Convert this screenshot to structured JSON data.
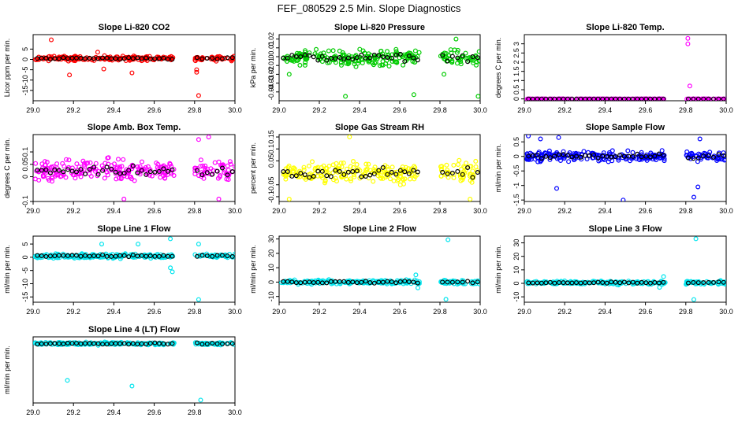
{
  "figure": {
    "title": "FEF_080529  2.5 Min. Slope Diagnostics"
  },
  "chart_data": [
    {
      "type": "scatter",
      "title": "Slope Li-820 CO2",
      "ylabel": "Licor ppm per min.",
      "xlim": [
        29.0,
        30.0
      ],
      "ylim": [
        -20,
        12
      ],
      "xticks": [
        29.0,
        29.2,
        29.4,
        29.6,
        29.8,
        30.0
      ],
      "yticks": [
        -15,
        -10,
        -5,
        0,
        5
      ],
      "color": "#ff0000",
      "center": 0.5,
      "spread": 1.6,
      "outliers": [
        [
          29.09,
          9.5
        ],
        [
          29.18,
          -7.5
        ],
        [
          29.32,
          3.5
        ],
        [
          29.35,
          -4.6
        ],
        [
          29.49,
          -6.5
        ],
        [
          29.81,
          -5.0
        ],
        [
          29.81,
          -6.2
        ],
        [
          29.82,
          -17.5
        ]
      ]
    },
    {
      "type": "scatter",
      "title": "Slope Li-820 Pressure",
      "ylabel": "kPa per min.",
      "xlim": [
        29.0,
        30.0
      ],
      "ylim": [
        -0.05,
        0.025
      ],
      "xticks": [
        29.0,
        29.2,
        29.4,
        29.6,
        29.8,
        30.0
      ],
      "yticks": [
        -0.04,
        -0.03,
        -0.02,
        -0.01,
        0.0,
        0.01,
        0.02
      ],
      "color": "#00cc00",
      "center": -0.001,
      "spread": 0.012,
      "outliers": [
        [
          29.33,
          -0.045
        ],
        [
          29.67,
          -0.043
        ],
        [
          29.82,
          -0.02
        ],
        [
          29.88,
          0.02
        ],
        [
          29.99,
          -0.045
        ],
        [
          29.05,
          -0.02
        ]
      ]
    },
    {
      "type": "scatter",
      "title": "Slope Li-820 Temp.",
      "ylabel": "degrees C per min.",
      "xlim": [
        29.0,
        30.0
      ],
      "ylim": [
        -0.1,
        3.5
      ],
      "xticks": [
        29.0,
        29.2,
        29.4,
        29.6,
        29.8,
        30.0
      ],
      "yticks": [
        0.0,
        0.5,
        1.0,
        1.5,
        2.0,
        2.5,
        3.0
      ],
      "color": "#ff00ff",
      "center": 0.0,
      "spread": 0.0,
      "outliers": [
        [
          29.81,
          3.3
        ],
        [
          29.81,
          3.0
        ],
        [
          29.82,
          0.7
        ]
      ]
    },
    {
      "type": "scatter",
      "title": "Slope Amb. Box Temp.",
      "ylabel": "degrees C per min.",
      "xlim": [
        29.0,
        30.0
      ],
      "ylim": [
        -0.1,
        0.17
      ],
      "xticks": [
        29.0,
        29.2,
        29.4,
        29.6,
        29.8,
        30.0
      ],
      "yticks": [
        -0.1,
        0.0,
        0.05,
        0.1
      ],
      "color": "#ff00ff",
      "center": 0.025,
      "spread": 0.06,
      "outliers": [
        [
          29.82,
          0.15
        ],
        [
          29.87,
          0.16
        ],
        [
          29.92,
          -0.09
        ],
        [
          29.45,
          -0.09
        ]
      ]
    },
    {
      "type": "scatter",
      "title": "Slope Gas Stream RH",
      "ylabel": "percent per min.",
      "xlim": [
        29.0,
        30.0
      ],
      "ylim": [
        -0.12,
        0.16
      ],
      "xticks": [
        29.0,
        29.2,
        29.4,
        29.6,
        29.8,
        30.0
      ],
      "yticks": [
        -0.1,
        -0.05,
        0.05,
        0.1,
        0.15
      ],
      "color": "#ffff00",
      "center": 0.0,
      "spread": 0.065,
      "outliers": [
        [
          29.35,
          0.15
        ],
        [
          29.05,
          -0.11
        ],
        [
          29.95,
          -0.11
        ]
      ]
    },
    {
      "type": "scatter",
      "title": "Slope Sample Flow",
      "ylabel": "ml/min per min.",
      "xlim": [
        29.0,
        30.0
      ],
      "ylim": [
        -1.55,
        0.75
      ],
      "xticks": [
        29.0,
        29.2,
        29.4,
        29.6,
        29.8,
        30.0
      ],
      "yticks": [
        -1.5,
        -1.0,
        -0.5,
        0.0,
        0.5
      ],
      "color": "#0000ff",
      "center": 0.0,
      "spread": 0.25,
      "outliers": [
        [
          29.02,
          0.7
        ],
        [
          29.08,
          0.6
        ],
        [
          29.17,
          0.65
        ],
        [
          29.16,
          -1.1
        ],
        [
          29.49,
          -1.5
        ],
        [
          29.84,
          -1.4
        ],
        [
          29.87,
          0.6
        ],
        [
          29.86,
          -1.05
        ]
      ]
    },
    {
      "type": "scatter",
      "title": "Slope Line 1 Flow",
      "ylabel": "ml/min per min.",
      "xlim": [
        29.0,
        30.0
      ],
      "ylim": [
        -17,
        8
      ],
      "xticks": [
        29.0,
        29.2,
        29.4,
        29.6,
        29.8,
        30.0
      ],
      "yticks": [
        -15,
        -10,
        -5,
        0,
        5
      ],
      "color": "#00e5ee",
      "center": 0.5,
      "spread": 1.2,
      "outliers": [
        [
          29.34,
          5.0
        ],
        [
          29.52,
          5.0
        ],
        [
          29.68,
          7.0
        ],
        [
          29.68,
          -4.0
        ],
        [
          29.69,
          -5.5
        ],
        [
          29.82,
          -16.0
        ],
        [
          29.82,
          5.0
        ]
      ]
    },
    {
      "type": "scatter",
      "title": "Slope Line 2 Flow",
      "ylabel": "ml/min per min.",
      "xlim": [
        29.0,
        30.0
      ],
      "ylim": [
        -14,
        32
      ],
      "xticks": [
        29.0,
        29.2,
        29.4,
        29.6,
        29.8,
        30.0
      ],
      "yticks": [
        -10,
        0,
        10,
        20,
        30
      ],
      "color": "#00e5ee",
      "center": 0.0,
      "spread": 2.0,
      "outliers": [
        [
          29.84,
          29.5
        ],
        [
          29.83,
          -12.0
        ],
        [
          29.68,
          5.0
        ],
        [
          29.69,
          -4.0
        ]
      ]
    },
    {
      "type": "scatter",
      "title": "Slope Line 3 Flow",
      "ylabel": "ml/min per min.",
      "xlim": [
        29.0,
        30.0
      ],
      "ylim": [
        -14,
        35
      ],
      "xticks": [
        29.0,
        29.2,
        29.4,
        29.6,
        29.8,
        30.0
      ],
      "yticks": [
        -10,
        0,
        10,
        20,
        30
      ],
      "color": "#00e5ee",
      "center": 0.5,
      "spread": 2.0,
      "outliers": [
        [
          29.85,
          33.0
        ],
        [
          29.84,
          -12.0
        ],
        [
          29.69,
          5.0
        ],
        [
          29.67,
          -3.0
        ]
      ]
    },
    {
      "type": "scatter",
      "title": "Slope Line 4 (LT) Flow",
      "ylabel": "ml/min per min.",
      "xlim": [
        29.0,
        30.0
      ],
      "ylim": [
        -10.5,
        1.2
      ],
      "xticks": [
        29.0,
        29.2,
        29.4,
        29.6,
        29.8,
        30.0
      ],
      "yticks": [],
      "color": "#00e5ee",
      "center": 0.0,
      "spread": 0.35,
      "outliers": [
        [
          29.17,
          -6.5
        ],
        [
          29.49,
          -7.5
        ],
        [
          29.83,
          -10.0
        ]
      ]
    }
  ]
}
